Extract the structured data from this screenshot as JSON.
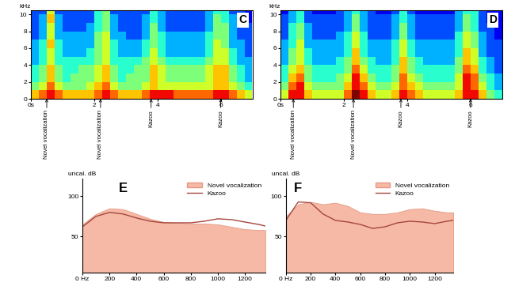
{
  "chart_data": [
    {
      "type": "heatmap",
      "title": "C",
      "y_label": "kHz",
      "time_edges": [
        0,
        0.25,
        0.5,
        0.75,
        1,
        1.25,
        1.5,
        1.75,
        2,
        2.25,
        2.5,
        2.75,
        3,
        3.25,
        3.5,
        3.75,
        4,
        4.25,
        4.5,
        4.75,
        5,
        5.25,
        5.5,
        5.75,
        6,
        6.25,
        6.5,
        6.75,
        7
      ],
      "frequency_edges": [
        0,
        1,
        2,
        3,
        4,
        5,
        6,
        7,
        8,
        9,
        10,
        11
      ],
      "cells": [
        [
          7,
          8,
          9,
          8,
          7,
          7,
          7,
          7,
          8,
          9,
          8,
          7,
          7,
          7,
          8,
          9,
          9,
          9,
          8,
          8,
          8,
          8,
          8,
          9,
          9,
          8,
          7,
          6
        ],
        [
          5,
          6,
          8,
          6,
          5,
          5,
          5,
          6,
          7,
          8,
          6,
          5,
          5,
          5,
          6,
          7,
          6,
          6,
          6,
          6,
          6,
          6,
          6,
          7,
          7,
          6,
          5,
          4
        ],
        [
          4,
          5,
          7,
          5,
          4,
          5,
          5,
          5,
          6,
          7,
          5,
          4,
          5,
          5,
          5,
          7,
          6,
          5,
          5,
          5,
          5,
          5,
          6,
          7,
          7,
          5,
          4,
          3
        ],
        [
          4,
          5,
          7,
          5,
          4,
          4,
          5,
          5,
          6,
          7,
          5,
          4,
          4,
          5,
          5,
          7,
          6,
          5,
          5,
          5,
          5,
          5,
          6,
          7,
          7,
          5,
          4,
          3
        ],
        [
          3,
          4,
          6,
          4,
          4,
          4,
          4,
          4,
          5,
          6,
          4,
          4,
          4,
          4,
          5,
          6,
          5,
          4,
          4,
          4,
          4,
          4,
          5,
          6,
          6,
          4,
          3,
          3
        ],
        [
          3,
          4,
          6,
          4,
          3,
          3,
          3,
          4,
          5,
          6,
          4,
          3,
          3,
          3,
          4,
          6,
          4,
          3,
          3,
          3,
          3,
          3,
          4,
          6,
          6,
          4,
          3,
          2
        ],
        [
          3,
          4,
          7,
          4,
          3,
          3,
          3,
          3,
          5,
          6,
          4,
          3,
          3,
          3,
          4,
          5,
          4,
          3,
          3,
          3,
          3,
          3,
          4,
          6,
          5,
          3,
          3,
          2
        ],
        [
          2,
          3,
          6,
          3,
          3,
          3,
          3,
          3,
          5,
          6,
          3,
          3,
          2,
          2,
          3,
          5,
          4,
          3,
          3,
          3,
          3,
          3,
          4,
          5,
          5,
          3,
          2,
          2
        ],
        [
          2,
          3,
          6,
          3,
          2,
          2,
          2,
          3,
          4,
          5,
          3,
          2,
          2,
          2,
          3,
          5,
          3,
          2,
          2,
          2,
          2,
          2,
          3,
          5,
          5,
          3,
          2,
          2
        ],
        [
          2,
          3,
          7,
          3,
          2,
          2,
          2,
          2,
          4,
          5,
          3,
          2,
          2,
          2,
          3,
          4,
          3,
          2,
          2,
          2,
          2,
          2,
          3,
          5,
          4,
          3,
          2,
          1
        ],
        [
          2,
          2,
          6,
          2,
          2,
          2,
          2,
          2,
          4,
          5,
          2,
          2,
          2,
          2,
          2,
          4,
          3,
          2,
          2,
          2,
          2,
          2,
          3,
          4,
          4,
          2,
          2,
          1
        ]
      ],
      "color_range": [
        0,
        10
      ],
      "xlim": [
        0,
        7
      ],
      "xticks": [
        {
          "value": 0,
          "label": "0s"
        },
        2,
        4,
        6
      ],
      "ylim": [
        0,
        10.5
      ],
      "yticks": [
        0,
        2,
        4,
        6,
        8,
        10
      ],
      "annotations": [
        {
          "x": 0.5,
          "text": "Novel vocalization"
        },
        {
          "x": 2.2,
          "text": "Novel vocalization"
        },
        {
          "x": 3.8,
          "text": "Kazoo"
        },
        {
          "x": 6.0,
          "text": "Kazoo"
        }
      ]
    },
    {
      "type": "heatmap",
      "title": "D",
      "y_label": "kHz",
      "time_edges": [
        0,
        0.25,
        0.5,
        0.75,
        1,
        1.25,
        1.5,
        1.75,
        2,
        2.25,
        2.5,
        2.75,
        3,
        3.25,
        3.5,
        3.75,
        4,
        4.25,
        4.5,
        4.75,
        5,
        5.25,
        5.5,
        5.75,
        6,
        6.25,
        6.5,
        6.75,
        7
      ],
      "frequency_edges": [
        0,
        1,
        2,
        3,
        4,
        5,
        6,
        7,
        8,
        9,
        10,
        11
      ],
      "cells": [
        [
          6,
          9,
          9,
          7,
          6,
          6,
          6,
          6,
          8,
          10,
          9,
          7,
          6,
          6,
          7,
          9,
          8,
          7,
          6,
          6,
          6,
          6,
          7,
          9,
          9,
          7,
          5,
          4
        ],
        [
          5,
          8,
          9,
          6,
          5,
          5,
          5,
          5,
          7,
          9,
          8,
          6,
          5,
          5,
          6,
          8,
          7,
          6,
          5,
          5,
          5,
          5,
          6,
          9,
          8,
          6,
          4,
          3
        ],
        [
          4,
          7,
          8,
          5,
          4,
          4,
          4,
          5,
          6,
          9,
          7,
          5,
          4,
          4,
          5,
          8,
          6,
          5,
          4,
          4,
          4,
          4,
          6,
          9,
          8,
          5,
          4,
          3
        ],
        [
          4,
          6,
          7,
          5,
          4,
          4,
          4,
          4,
          5,
          8,
          6,
          4,
          4,
          4,
          5,
          7,
          5,
          4,
          4,
          4,
          4,
          4,
          5,
          8,
          7,
          4,
          3,
          2
        ],
        [
          3,
          5,
          6,
          4,
          3,
          3,
          3,
          4,
          5,
          7,
          5,
          4,
          3,
          3,
          4,
          7,
          5,
          4,
          3,
          3,
          3,
          3,
          5,
          7,
          6,
          4,
          3,
          2
        ],
        [
          3,
          5,
          6,
          4,
          3,
          3,
          3,
          3,
          4,
          7,
          4,
          3,
          3,
          3,
          4,
          6,
          4,
          3,
          3,
          3,
          3,
          3,
          4,
          7,
          6,
          3,
          2,
          2
        ],
        [
          3,
          4,
          6,
          3,
          3,
          3,
          3,
          3,
          4,
          6,
          4,
          3,
          3,
          3,
          4,
          6,
          4,
          3,
          3,
          3,
          3,
          3,
          4,
          6,
          5,
          3,
          2,
          2
        ],
        [
          2,
          4,
          5,
          3,
          2,
          2,
          2,
          3,
          4,
          6,
          4,
          2,
          2,
          2,
          3,
          5,
          3,
          2,
          2,
          2,
          2,
          2,
          4,
          6,
          5,
          3,
          2,
          1
        ],
        [
          2,
          4,
          5,
          3,
          2,
          2,
          2,
          2,
          3,
          5,
          3,
          2,
          2,
          2,
          3,
          5,
          3,
          2,
          2,
          2,
          2,
          2,
          3,
          5,
          4,
          2,
          2,
          1
        ],
        [
          2,
          3,
          4,
          2,
          2,
          2,
          2,
          2,
          3,
          5,
          3,
          2,
          2,
          2,
          3,
          4,
          3,
          2,
          2,
          2,
          2,
          2,
          3,
          5,
          4,
          2,
          1,
          1
        ],
        [
          1,
          3,
          4,
          2,
          1,
          1,
          1,
          2,
          3,
          4,
          3,
          2,
          1,
          1,
          2,
          4,
          2,
          1,
          1,
          1,
          1,
          1,
          3,
          4,
          4,
          2,
          1,
          1
        ]
      ],
      "color_range": [
        0,
        10
      ],
      "xlim": [
        0,
        7
      ],
      "xticks": [
        {
          "value": 0,
          "label": "0s"
        },
        2,
        4,
        6
      ],
      "ylim": [
        0,
        10.5
      ],
      "yticks": [
        0,
        2,
        4,
        6,
        8,
        10
      ],
      "annotations": [
        {
          "x": 0.4,
          "text": "Novel vocalization"
        },
        {
          "x": 2.3,
          "text": "Novel vocalization"
        },
        {
          "x": 3.8,
          "text": "Kazoo"
        },
        {
          "x": 6.0,
          "text": "Kazoo"
        }
      ]
    },
    {
      "type": "line",
      "title": "E",
      "y_label": "uncal. dB",
      "x": [
        0,
        100,
        200,
        300,
        400,
        500,
        600,
        700,
        800,
        900,
        1000,
        1100,
        1200,
        1300,
        1350
      ],
      "series": [
        {
          "name": "Novel vocalization",
          "type": "area",
          "color": "#f6b9a6",
          "values": [
            65,
            78,
            85,
            84,
            78,
            72,
            68,
            67,
            66,
            66,
            65,
            62,
            59,
            58,
            58
          ]
        },
        {
          "name": "Kazoo",
          "type": "line",
          "color": "#a5463c",
          "values": [
            62,
            75,
            80,
            78,
            73,
            69,
            67,
            67,
            67,
            69,
            72,
            71,
            68,
            65,
            63
          ]
        }
      ],
      "xlim": [
        0,
        1350
      ],
      "xticks": [
        {
          "value": 0,
          "label": "0 Hz"
        },
        200,
        400,
        600,
        800,
        1000,
        1200
      ],
      "ylim": [
        5,
        122
      ],
      "yticks": [
        50,
        100
      ],
      "legend": "upper right"
    },
    {
      "type": "line",
      "title": "F",
      "y_label": "uncal. dB",
      "x": [
        0,
        100,
        200,
        300,
        400,
        500,
        600,
        700,
        800,
        900,
        1000,
        1100,
        1200,
        1300,
        1350
      ],
      "series": [
        {
          "name": "Novel vocalization",
          "type": "area",
          "color": "#f6b9a6",
          "values": [
            75,
            90,
            93,
            90,
            92,
            88,
            80,
            78,
            78,
            80,
            84,
            85,
            82,
            80,
            80
          ]
        },
        {
          "name": "Kazoo",
          "type": "line",
          "color": "#a5463c",
          "values": [
            70,
            93,
            92,
            78,
            70,
            68,
            65,
            60,
            62,
            67,
            69,
            68,
            66,
            69,
            70
          ]
        }
      ],
      "xlim": [
        0,
        1350
      ],
      "xticks": [
        {
          "value": 0,
          "label": "0 Hz"
        },
        200,
        400,
        600,
        800,
        1000,
        1200
      ],
      "ylim": [
        5,
        122
      ],
      "yticks": [
        50,
        100
      ],
      "legend": "upper right"
    }
  ]
}
